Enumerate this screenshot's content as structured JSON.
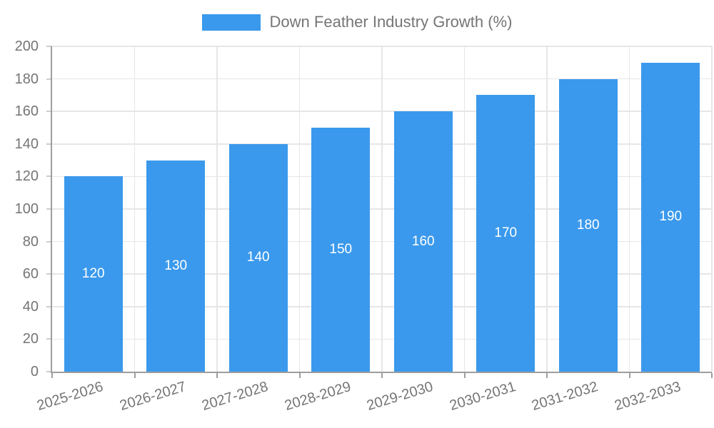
{
  "legend": {
    "label": "Down Feather Industry Growth (%)"
  },
  "chart_data": {
    "type": "bar",
    "title": "Down Feather Industry Growth (%)",
    "categories": [
      "2025-2026",
      "2026-2027",
      "2027-2028",
      "2028-2029",
      "2029-2030",
      "2030-2031",
      "2031-2032",
      "2032-2033"
    ],
    "values": [
      120,
      130,
      140,
      150,
      160,
      170,
      180,
      190
    ],
    "bar_value_labels": [
      "120",
      "130",
      "140",
      "150",
      "160",
      "170",
      "180",
      "190"
    ],
    "xlabel": "",
    "ylabel": "",
    "ylim": [
      0,
      200
    ],
    "ytick_step": 20,
    "yticks": [
      0,
      20,
      40,
      60,
      80,
      100,
      120,
      140,
      160,
      180,
      200
    ],
    "grid": true,
    "legend_position": "top",
    "colors": {
      "bar": "#3a99ec",
      "bar_label": "#ffffff",
      "axis_text": "#757575",
      "gridline": "#e6e6e6",
      "axis_line": "#9e9e9e",
      "y_tick_mark": "#cccccc",
      "background": "#ffffff"
    }
  }
}
